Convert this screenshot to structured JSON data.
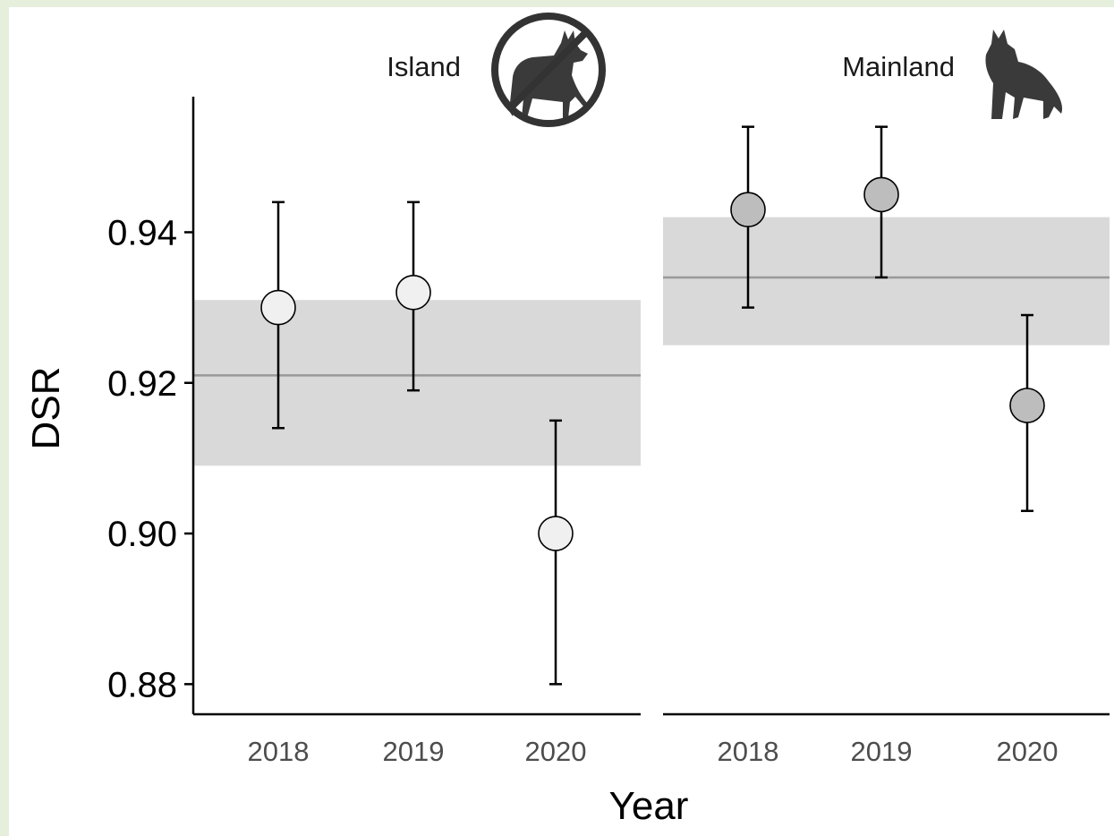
{
  "chart_data": {
    "type": "scatter",
    "ylabel": "DSR",
    "xlabel": "Year",
    "ylim": [
      0.876,
      0.958
    ],
    "yticks": [
      0.88,
      0.9,
      0.92,
      0.94
    ],
    "ytick_labels": [
      "0.88",
      "0.90",
      "0.92",
      "0.94"
    ],
    "categories": [
      "2018",
      "2019",
      "2020"
    ],
    "grid": false,
    "panels": [
      {
        "label": "Island",
        "icon": "crossed-out-fox-icon",
        "point_color": "#f0f0f0",
        "mean": 0.921,
        "mean_ci": [
          0.909,
          0.931
        ],
        "points": [
          {
            "x": "2018",
            "y": 0.93,
            "lower": 0.914,
            "upper": 0.944
          },
          {
            "x": "2019",
            "y": 0.932,
            "lower": 0.919,
            "upper": 0.944
          },
          {
            "x": "2020",
            "y": 0.9,
            "lower": 0.88,
            "upper": 0.915
          }
        ]
      },
      {
        "label": "Mainland",
        "icon": "fox-icon",
        "point_color": "#bdbdbd",
        "mean": 0.934,
        "mean_ci": [
          0.925,
          0.942
        ],
        "points": [
          {
            "x": "2018",
            "y": 0.943,
            "lower": 0.93,
            "upper": 0.954
          },
          {
            "x": "2019",
            "y": 0.945,
            "lower": 0.934,
            "upper": 0.954
          },
          {
            "x": "2020",
            "y": 0.917,
            "lower": 0.903,
            "upper": 0.929
          }
        ]
      }
    ],
    "colors": {
      "band": "#d9d9d9",
      "mean_line": "#999999",
      "error_bar": "#000000",
      "axis": "#000000"
    }
  }
}
